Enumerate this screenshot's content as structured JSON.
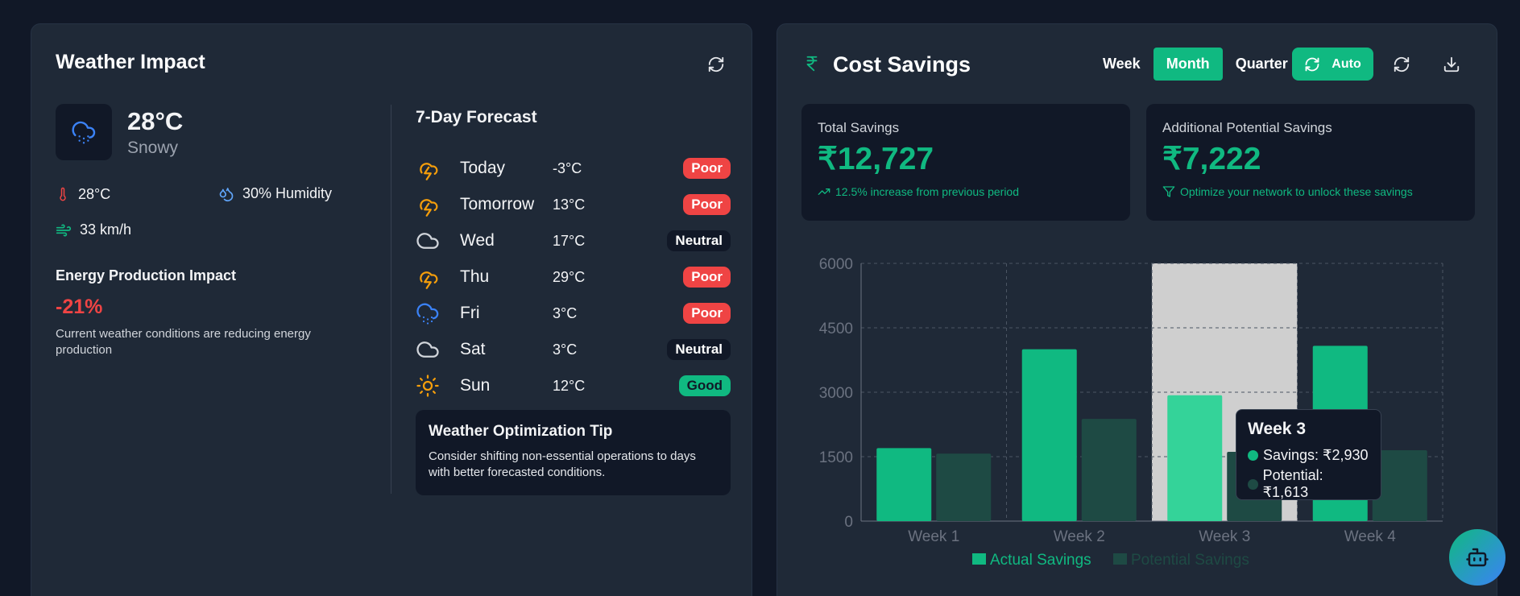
{
  "weather": {
    "title": "Weather Impact",
    "current_temp": "28°C",
    "condition": "Snowy",
    "temp_stat": "28°C",
    "humidity": "30% Humidity",
    "wind": "33 km/h",
    "impact_heading": "Energy Production Impact",
    "impact_value": "-21%",
    "impact_desc": "Current weather conditions are reducing energy production",
    "forecast_title": "7-Day Forecast",
    "forecast": [
      {
        "day": "Today",
        "temp": "-3°C",
        "status": "Poor",
        "icon": "storm-icon"
      },
      {
        "day": "Tomorrow",
        "temp": "13°C",
        "status": "Poor",
        "icon": "storm-icon"
      },
      {
        "day": "Wed",
        "temp": "17°C",
        "status": "Neutral",
        "icon": "cloud-icon"
      },
      {
        "day": "Thu",
        "temp": "29°C",
        "status": "Poor",
        "icon": "storm-icon"
      },
      {
        "day": "Fri",
        "temp": "3°C",
        "status": "Poor",
        "icon": "snow-icon"
      },
      {
        "day": "Sat",
        "temp": "3°C",
        "status": "Neutral",
        "icon": "cloud-icon"
      },
      {
        "day": "Sun",
        "temp": "12°C",
        "status": "Good",
        "icon": "sun-icon"
      }
    ],
    "tip_title": "Weather Optimization Tip",
    "tip_text": "Consider shifting non-essential operations to days with better forecasted conditions."
  },
  "cost": {
    "title": "Cost Savings",
    "periods": [
      "Week",
      "Month",
      "Quarter"
    ],
    "active_period": "Month",
    "auto_label": "Auto",
    "total_label": "Total Savings",
    "total_value": "₹12,727",
    "total_sub": "12.5% increase from previous period",
    "potential_label": "Additional Potential Savings",
    "potential_value": "₹7,222",
    "potential_sub": "Optimize your network to unlock these savings",
    "tooltip": {
      "title": "Week 3",
      "savings": "Savings: ₹2,930",
      "potential": "Potential: ₹1,613"
    }
  },
  "colors": {
    "accent": "#10b981",
    "potential": "#1e4a44",
    "poor": "#ef4444",
    "storm": "#f59e0b",
    "snow": "#3b82f6"
  },
  "chart_data": {
    "type": "bar",
    "categories": [
      "Week 1",
      "Week 2",
      "Week 3",
      "Week 4"
    ],
    "series": [
      {
        "name": "Actual Savings",
        "values": [
          1700,
          4000,
          2930,
          4080
        ]
      },
      {
        "name": "Potential Savings",
        "values": [
          1570,
          2380,
          1613,
          1650
        ]
      }
    ],
    "ylim": [
      0,
      6000
    ],
    "yticks": [
      0,
      1500,
      3000,
      4500,
      6000
    ],
    "grid": true,
    "legend": "bottom",
    "highlighted_category": "Week 3"
  }
}
